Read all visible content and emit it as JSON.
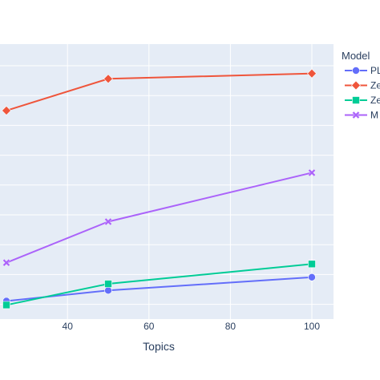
{
  "chart_data": {
    "type": "line",
    "xlabel": "Topics",
    "ylabel": "",
    "x_ticks": [
      40,
      60,
      80,
      100
    ],
    "xlim": [
      25,
      105
    ],
    "ylim": [
      -0.05,
      1.05
    ],
    "grid": true,
    "legend": {
      "title": "Model",
      "placement": "top-right",
      "labels": [
        "PL",
        "Ze",
        "Ze",
        "M"
      ]
    },
    "series": [
      {
        "name": "PL",
        "color": "#636efa",
        "marker": "circle",
        "x": [
          25,
          50,
          100
        ],
        "y": [
          0.05,
          0.09,
          0.14
        ]
      },
      {
        "name": "Ze",
        "color": "#ef553b",
        "marker": "diamond",
        "x": [
          25,
          50,
          100
        ],
        "y": [
          0.77,
          0.89,
          0.91
        ]
      },
      {
        "name": "Ze",
        "color": "#00cc96",
        "marker": "square",
        "x": [
          25,
          50,
          100
        ],
        "y": [
          0.035,
          0.115,
          0.19
        ]
      },
      {
        "name": "M",
        "color": "#ab63fa",
        "marker": "x",
        "x": [
          25,
          50,
          100
        ],
        "y": [
          0.195,
          0.35,
          0.535
        ]
      }
    ]
  }
}
